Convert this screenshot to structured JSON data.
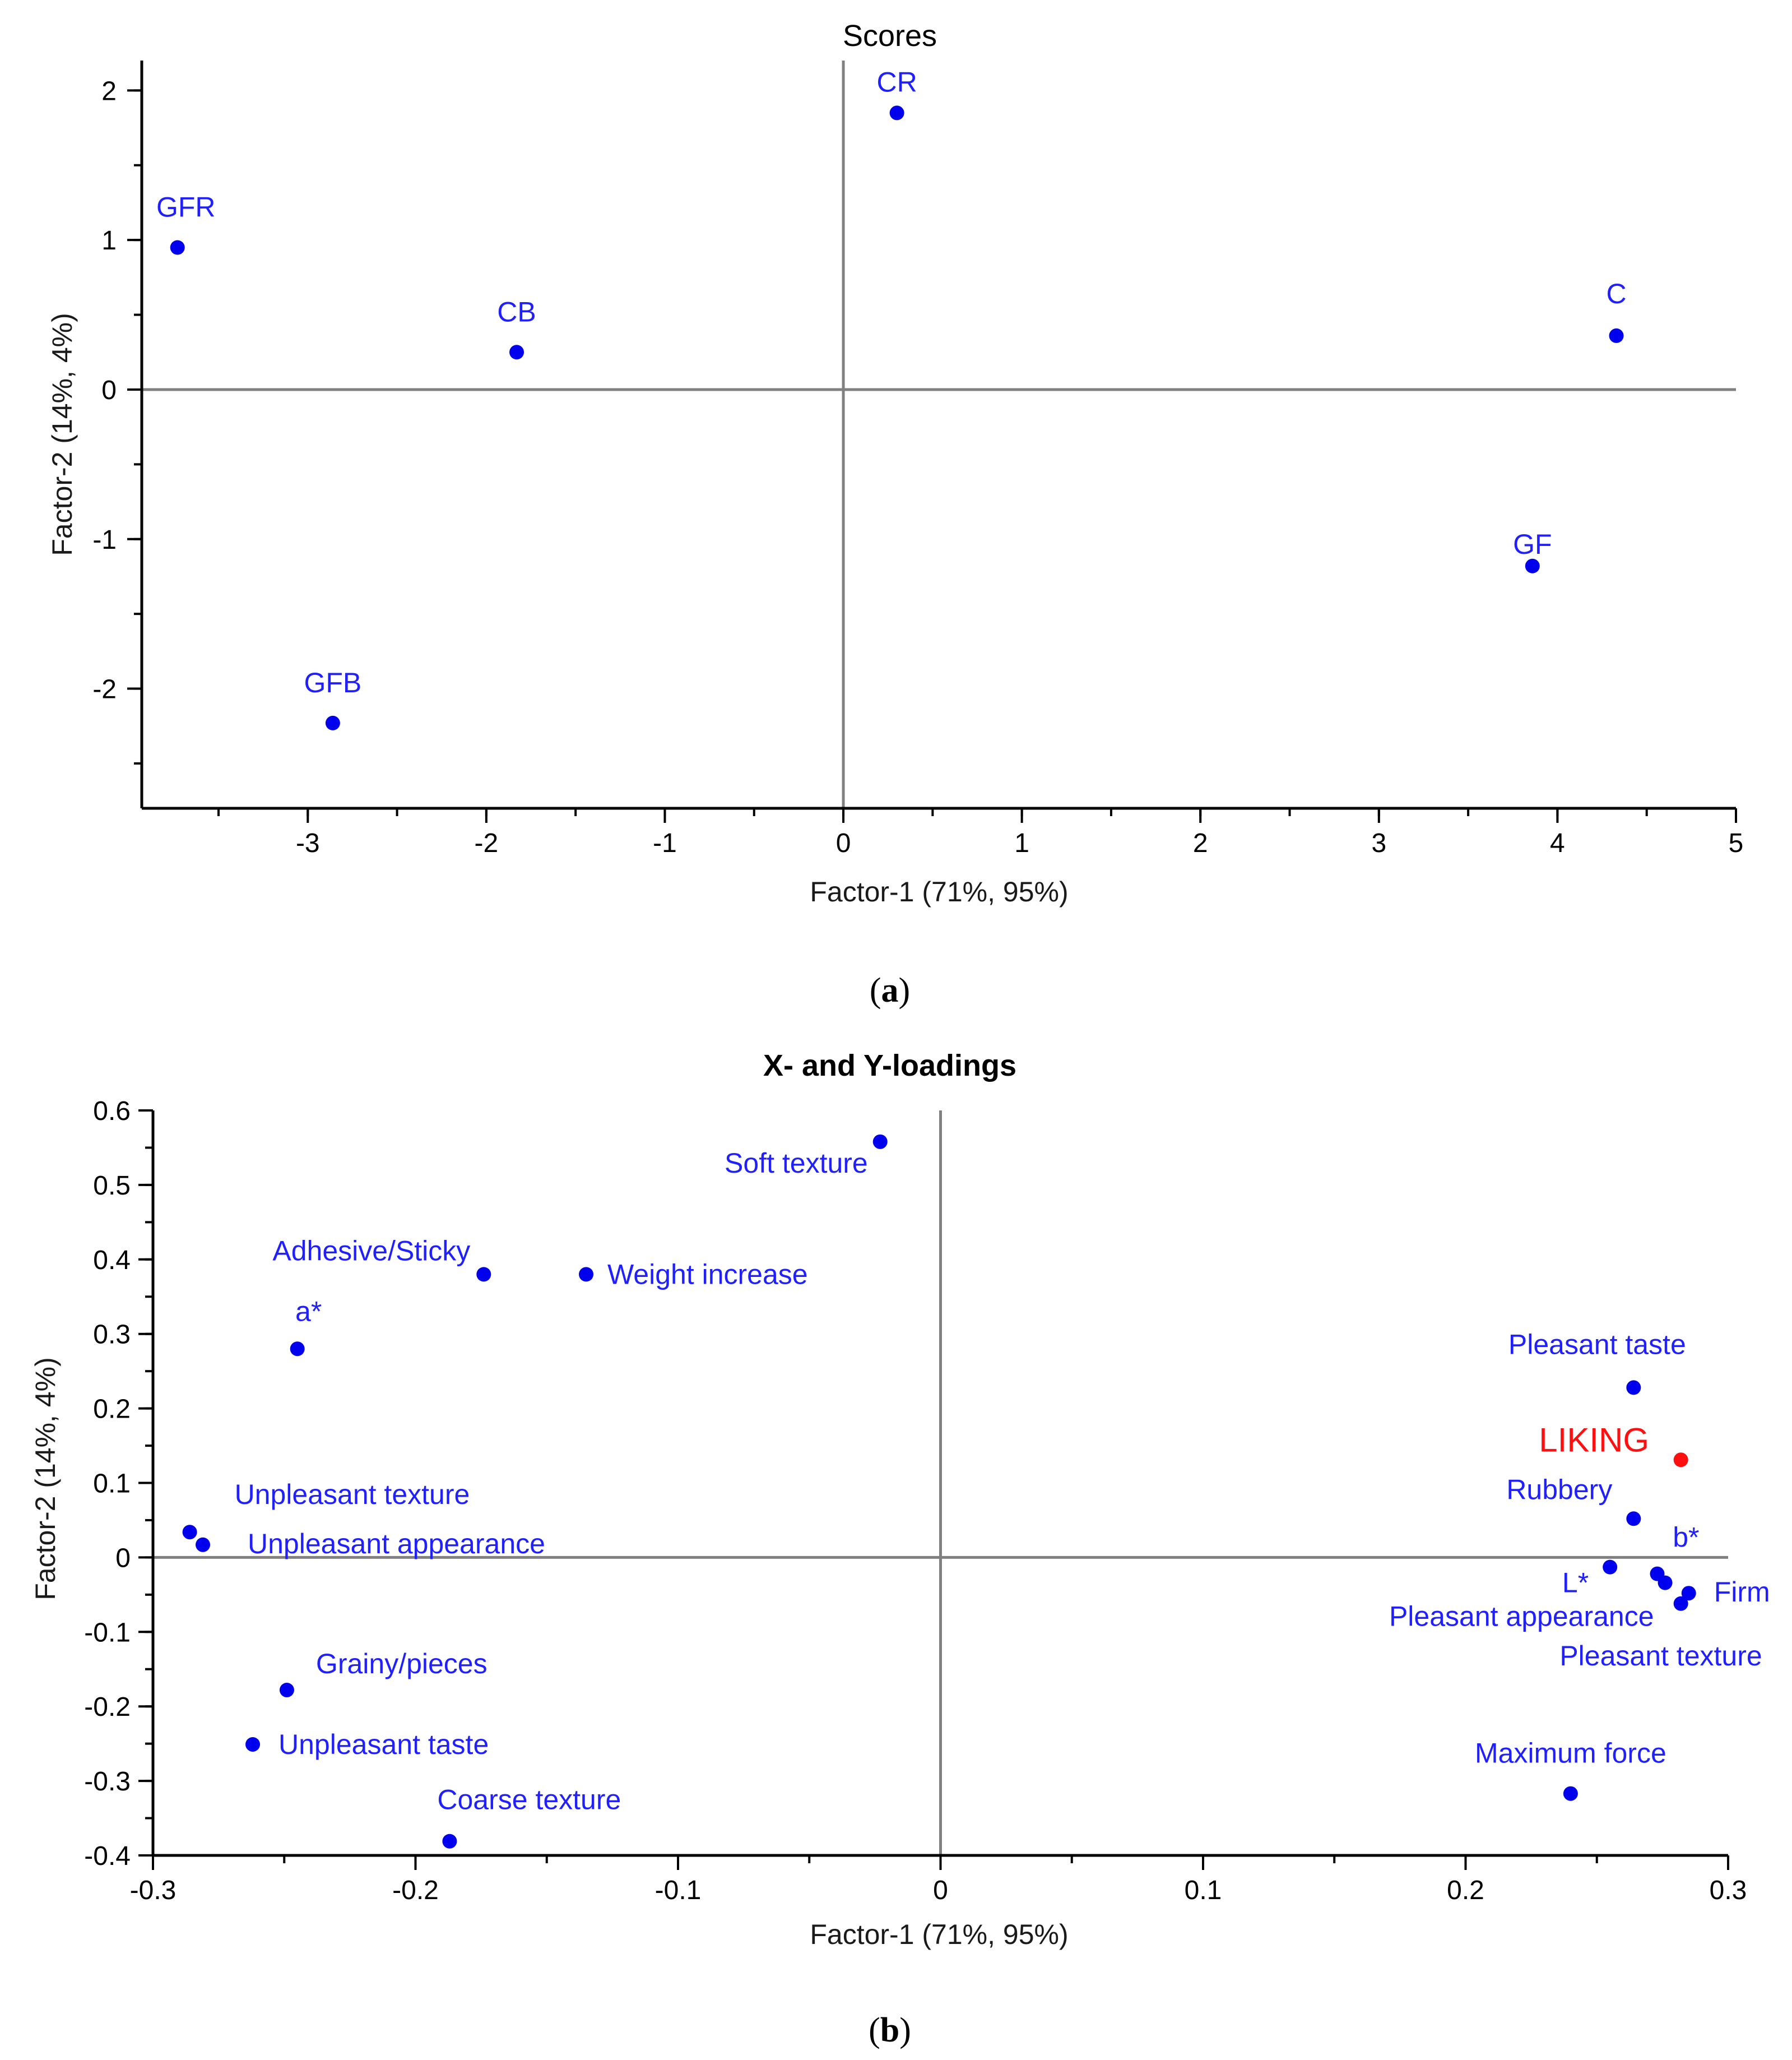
{
  "colors": {
    "point": "#0000ee",
    "label": "#1f1fff",
    "highlight": "#ff1010",
    "axis": "#000000",
    "zero_line": "#808080"
  },
  "chart_data": [
    {
      "type": "scatter",
      "title": "Scores",
      "xlabel": "Factor-1 (71%, 95%)",
      "ylabel": "Factor-2 (14%, 4%)",
      "xlim": [
        -3.93,
        5.0
      ],
      "ylim": [
        -2.8,
        2.2
      ],
      "xticks": [
        -3,
        -2,
        -1,
        0,
        1,
        2,
        3,
        4,
        5
      ],
      "xtick_labels": [
        "-3",
        "-2",
        "-1",
        "0",
        "1",
        "2",
        "3",
        "4",
        "5"
      ],
      "yticks": [
        -2,
        -1,
        0,
        1,
        2
      ],
      "ytick_labels": [
        "-2",
        "-1",
        "0",
        "1",
        "2"
      ],
      "grid": false,
      "caption_open": "(",
      "caption_letter": "a",
      "caption_close": ")",
      "points": [
        {
          "label": "CR",
          "x": 0.3,
          "y": 1.85,
          "color": "point"
        },
        {
          "label": "GFR",
          "x": -3.73,
          "y": 0.95,
          "color": "point"
        },
        {
          "label": "CB",
          "x": -1.83,
          "y": 0.25,
          "color": "point"
        },
        {
          "label": "C",
          "x": 4.33,
          "y": 0.36,
          "color": "point"
        },
        {
          "label": "GF",
          "x": 3.86,
          "y": -1.18,
          "color": "point"
        },
        {
          "label": "GFB",
          "x": -2.86,
          "y": -2.23,
          "color": "point"
        }
      ]
    },
    {
      "type": "scatter",
      "title": "X- and Y-loadings",
      "xlabel": "Factor-1 (71%, 95%)",
      "ylabel": "Factor-2 (14%, 4%)",
      "xlim": [
        -0.3,
        0.3
      ],
      "ylim": [
        -0.4,
        0.6
      ],
      "xticks": [
        -0.3,
        -0.2,
        -0.1,
        0,
        0.1,
        0.2,
        0.3
      ],
      "xtick_labels": [
        "-0.3",
        "-0.2",
        "-0.1",
        "0",
        "0.1",
        "0.2",
        "0.3"
      ],
      "yticks": [
        -0.4,
        -0.3,
        -0.2,
        -0.1,
        0,
        0.1,
        0.2,
        0.3,
        0.4,
        0.5,
        0.6
      ],
      "ytick_labels": [
        "-0.4",
        "-0.3",
        "-0.2",
        "-0.1",
        "0",
        "0.1",
        "0.2",
        "0.3",
        "0.4",
        "0.5",
        "0.6"
      ],
      "grid": false,
      "caption_open": "(",
      "caption_letter": "b",
      "caption_close": ")",
      "points": [
        {
          "label": "Soft texture",
          "x": -0.023,
          "y": 0.558,
          "color": "point"
        },
        {
          "label": "Adhesive/Sticky",
          "x": -0.174,
          "y": 0.38,
          "color": "point"
        },
        {
          "label": "Weight increase",
          "x": -0.135,
          "y": 0.38,
          "color": "point"
        },
        {
          "label": "a*",
          "x": -0.245,
          "y": 0.28,
          "color": "point"
        },
        {
          "label": "Pleasant taste",
          "x": 0.264,
          "y": 0.228,
          "color": "point"
        },
        {
          "label": "LIKING",
          "x": 0.282,
          "y": 0.131,
          "color": "highlight"
        },
        {
          "label": "Unpleasant texture",
          "x": -0.286,
          "y": 0.034,
          "color": "point"
        },
        {
          "label": "Unpleasant appearance",
          "x": -0.281,
          "y": 0.017,
          "color": "point"
        },
        {
          "label": "Rubbery",
          "x": 0.264,
          "y": 0.052,
          "color": "point"
        },
        {
          "label": "b*",
          "x": 0.273,
          "y": -0.022,
          "color": "point"
        },
        {
          "label": "L*",
          "x": 0.255,
          "y": -0.013,
          "color": "point"
        },
        {
          "label": "Firm",
          "x": 0.285,
          "y": -0.048,
          "color": "point"
        },
        {
          "label": "Pleasant appearance",
          "x": 0.276,
          "y": -0.034,
          "color": "point"
        },
        {
          "label": "Pleasant texture",
          "x": 0.282,
          "y": -0.062,
          "color": "point"
        },
        {
          "label": "Grainy/pieces",
          "x": -0.249,
          "y": -0.178,
          "color": "point"
        },
        {
          "label": "Unpleasant taste",
          "x": -0.262,
          "y": -0.251,
          "color": "point"
        },
        {
          "label": "Coarse texture",
          "x": -0.187,
          "y": -0.381,
          "color": "point"
        },
        {
          "label": "Maximum  force",
          "x": 0.24,
          "y": -0.317,
          "color": "point"
        }
      ]
    }
  ]
}
